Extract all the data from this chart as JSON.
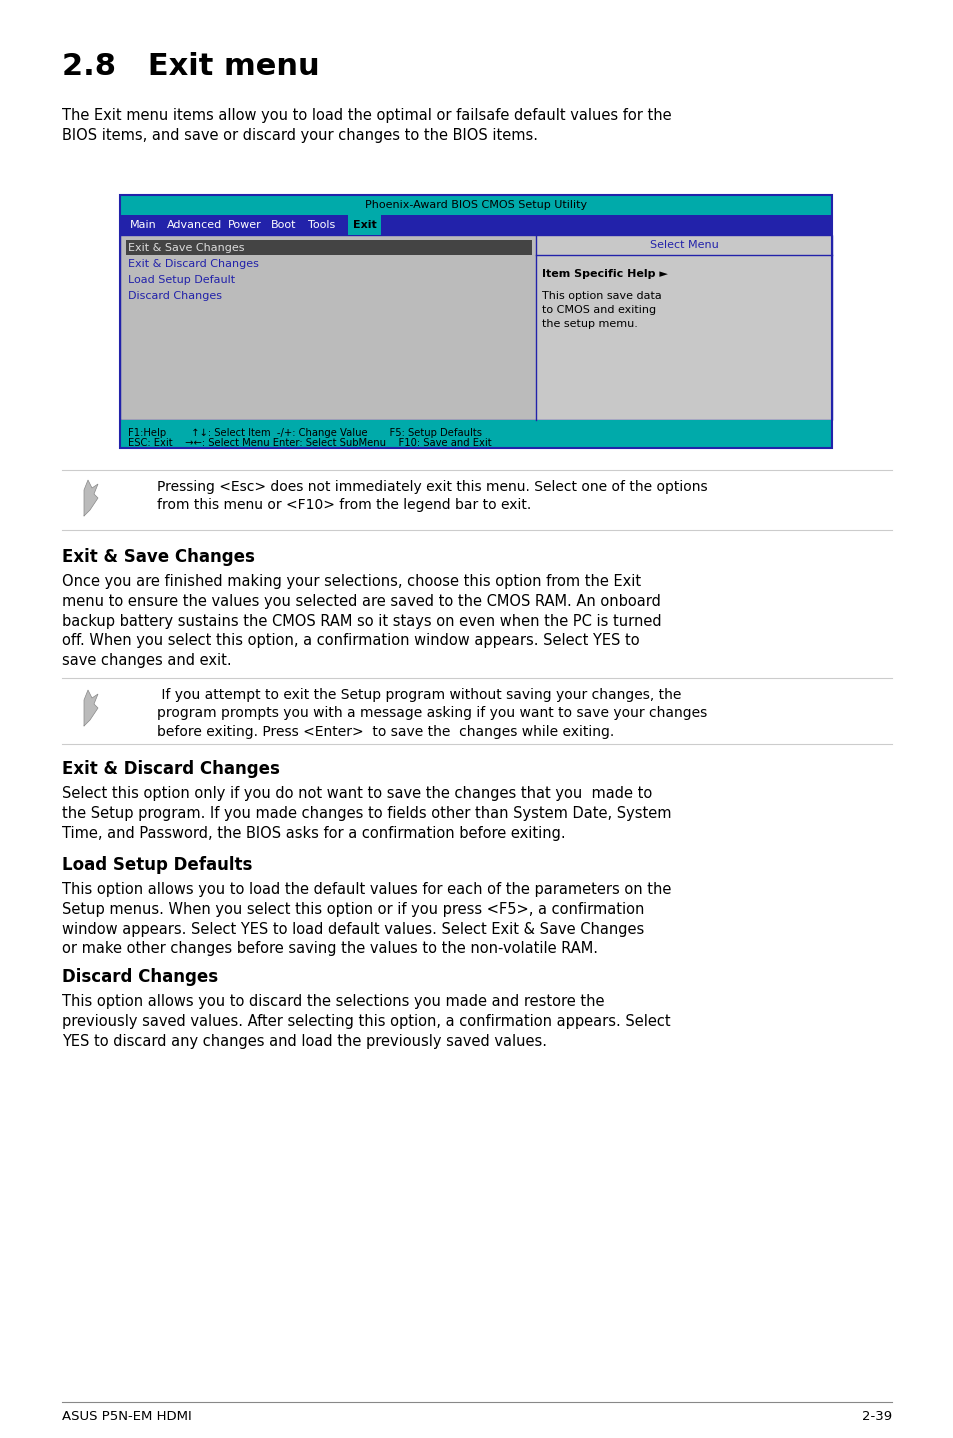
{
  "title": "2.8   Exit menu",
  "intro_text": "The Exit menu items allow you to load the optimal or failsafe default values for the\nBIOS items, and save or discard your changes to the BIOS items.",
  "bios_title": "Phoenix-Award BIOS CMOS Setup Utility",
  "bios_menu_items": [
    "Main",
    "Advanced",
    "Power",
    "Boot",
    "Tools",
    "Exit"
  ],
  "bios_selected": "Exit",
  "bios_left_items": [
    "Exit & Save Changes",
    "Exit & Discard Changes",
    "Load Setup Default",
    "Discard Changes"
  ],
  "bios_selected_item": "Exit & Save Changes",
  "bios_right_title": "Select Menu",
  "bios_right_help": "Item Specific Help ►",
  "bios_right_text": "This option save data\nto CMOS and exiting\nthe setup memu.",
  "bios_footer1": "F1:Help        ↑↓: Select Item  -/+: Change Value       F5: Setup Defaults",
  "bios_footer2": "ESC: Exit    →←: Select Menu Enter: Select SubMenu    F10: Save and Exit",
  "note1_text": "Pressing <Esc> does not immediately exit this menu. Select one of the options\nfrom this menu or <F10> from the legend bar to exit.",
  "section1_title": "Exit & Save Changes",
  "section1_text": "Once you are finished making your selections, choose this option from the Exit\nmenu to ensure the values you selected are saved to the CMOS RAM. An onboard\nbackup battery sustains the CMOS RAM so it stays on even when the PC is turned\noff. When you select this option, a confirmation window appears. Select YES to\nsave changes and exit.",
  "note2_text": " If you attempt to exit the Setup program without saving your changes, the\nprogram prompts you with a message asking if you want to save your changes\nbefore exiting. Press <Enter>  to save the  changes while exiting.",
  "section2_title": "Exit & Discard Changes",
  "section2_text": "Select this option only if you do not want to save the changes that you  made to\nthe Setup program. If you made changes to fields other than System Date, System\nTime, and Password, the BIOS asks for a confirmation before exiting.",
  "section3_title": "Load Setup Defaults",
  "section3_text": "This option allows you to load the default values for each of the parameters on the\nSetup menus. When you select this option or if you press <F5>, a confirmation\nwindow appears. Select YES to load default values. Select Exit & Save Changes\nor make other changes before saving the values to the non-volatile RAM.",
  "section4_title": "Discard Changes",
  "section4_text": "This option allows you to discard the selections you made and restore the\npreviously saved values. After selecting this option, a confirmation appears. Select\nYES to discard any changes and load the previously saved values.",
  "footer_left": "ASUS P5N-EM HDMI",
  "footer_right": "2-39",
  "bg_color": "#ffffff",
  "bios_header_bg": "#00aaaa",
  "bios_menu_bg": "#2222aa",
  "bios_body_bg": "#bbbbbb",
  "bios_item_fg": "#2222aa",
  "bios_selected_item_fg": "#dddddd",
  "bios_footer_bg": "#00aaaa"
}
